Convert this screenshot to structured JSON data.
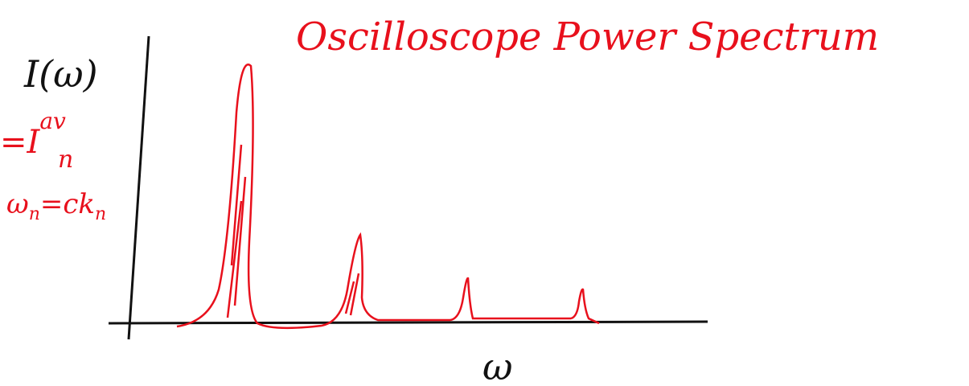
{
  "title": "Oscilloscope Power Spectrum",
  "y_axis": {
    "label": "I(ω)"
  },
  "average_note": {
    "base": "=I",
    "superscript": "av",
    "subscript": "n"
  },
  "dispersion_note": {
    "base": "ω",
    "subscript": "n",
    "rest": "=ck",
    "subscript_2": "n"
  },
  "x_axis": {
    "label": "ω"
  }
}
